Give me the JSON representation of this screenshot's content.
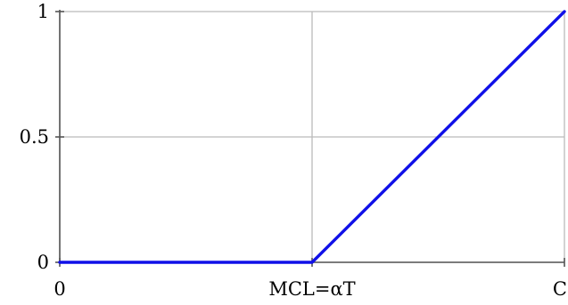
{
  "chart_data": {
    "type": "line",
    "title": "",
    "xlabel": "",
    "ylabel": "",
    "x_ticks": [
      {
        "value": 0,
        "label": "0"
      },
      {
        "value": 0.5,
        "label": "MCL=αT"
      },
      {
        "value": 1,
        "label": "C"
      }
    ],
    "y_ticks": [
      {
        "value": 0,
        "label": "0"
      },
      {
        "value": 0.5,
        "label": "0.5"
      },
      {
        "value": 1,
        "label": "1"
      }
    ],
    "xlim": [
      0,
      1
    ],
    "ylim": [
      0,
      1
    ],
    "grid": true,
    "series": [
      {
        "color": "#1010e8",
        "points": [
          {
            "x": 0,
            "y": 0
          },
          {
            "x": 0.5,
            "y": 0
          },
          {
            "x": 1,
            "y": 1
          }
        ]
      }
    ],
    "colors": {
      "axis": "#555555",
      "grid": "#bbbbbb"
    }
  }
}
